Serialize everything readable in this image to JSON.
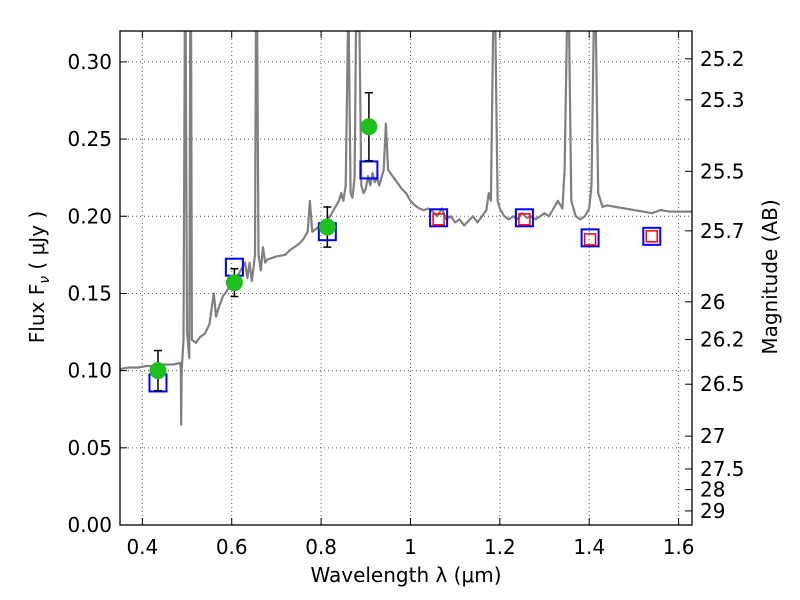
{
  "chart_data": {
    "type": "scatter",
    "xlabel": "Wavelength  λ (μm)",
    "ylabel": "Flux  F",
    "ylabel_sub": "ν",
    "ylabel_unit": " ( μJy )",
    "ylabel_right": "Magnitude (AB)",
    "xlim": [
      0.35,
      1.63
    ],
    "ylim": [
      0.0,
      0.32
    ],
    "grid": true,
    "x_ticks": [
      {
        "value": 0.4,
        "label": "0.4"
      },
      {
        "value": 0.6,
        "label": "0.6"
      },
      {
        "value": 0.8,
        "label": "0.8"
      },
      {
        "value": 1.0,
        "label": "1"
      },
      {
        "value": 1.2,
        "label": "1.2"
      },
      {
        "value": 1.4,
        "label": "1.4"
      },
      {
        "value": 1.6,
        "label": "1.6"
      }
    ],
    "y_ticks": [
      {
        "value": 0.0,
        "label": "0.00"
      },
      {
        "value": 0.05,
        "label": "0.05"
      },
      {
        "value": 0.1,
        "label": "0.10"
      },
      {
        "value": 0.15,
        "label": "0.15"
      },
      {
        "value": 0.2,
        "label": "0.20"
      },
      {
        "value": 0.25,
        "label": "0.25"
      },
      {
        "value": 0.3,
        "label": "0.30"
      }
    ],
    "mag_ticks": [
      {
        "mag": 25.2,
        "label": "25.2"
      },
      {
        "mag": 25.3,
        "label": "25.3"
      },
      {
        "mag": 25.5,
        "label": "25.5"
      },
      {
        "mag": 25.7,
        "label": "25.7"
      },
      {
        "mag": 26.0,
        "label": "26"
      },
      {
        "mag": 26.2,
        "label": "26.2"
      },
      {
        "mag": 26.5,
        "label": "26.5"
      },
      {
        "mag": 27.0,
        "label": "27"
      },
      {
        "mag": 27.5,
        "label": "27.5"
      },
      {
        "mag": 28.0,
        "label": "28"
      },
      {
        "mag": 29.0,
        "label": "29"
      }
    ],
    "colors": {
      "spectrum": "#808080",
      "observed": "#1fbf1f",
      "model_blue": "#0000ff",
      "model_red": "#ff0000",
      "errorbar": "#000000",
      "grid": "#555555"
    },
    "spectrum": [
      [
        0.35,
        0.101
      ],
      [
        0.37,
        0.102
      ],
      [
        0.39,
        0.102
      ],
      [
        0.41,
        0.103
      ],
      [
        0.43,
        0.103
      ],
      [
        0.45,
        0.104
      ],
      [
        0.47,
        0.104
      ],
      [
        0.485,
        0.105
      ],
      [
        0.486,
        0.1
      ],
      [
        0.487,
        0.065
      ],
      [
        0.488,
        0.1
      ],
      [
        0.492,
        0.12
      ],
      [
        0.495,
        0.32
      ],
      [
        0.497,
        0.32
      ],
      [
        0.5,
        0.125
      ],
      [
        0.505,
        0.108
      ],
      [
        0.507,
        0.32
      ],
      [
        0.509,
        0.32
      ],
      [
        0.511,
        0.12
      ],
      [
        0.52,
        0.118
      ],
      [
        0.53,
        0.122
      ],
      [
        0.54,
        0.124
      ],
      [
        0.55,
        0.13
      ],
      [
        0.56,
        0.15
      ],
      [
        0.565,
        0.135
      ],
      [
        0.57,
        0.14
      ],
      [
        0.58,
        0.148
      ],
      [
        0.59,
        0.152
      ],
      [
        0.6,
        0.158
      ],
      [
        0.61,
        0.16
      ],
      [
        0.62,
        0.165
      ],
      [
        0.63,
        0.17
      ],
      [
        0.635,
        0.16
      ],
      [
        0.64,
        0.17
      ],
      [
        0.645,
        0.158
      ],
      [
        0.648,
        0.165
      ],
      [
        0.652,
        0.175
      ],
      [
        0.654,
        0.32
      ],
      [
        0.657,
        0.32
      ],
      [
        0.66,
        0.175
      ],
      [
        0.665,
        0.165
      ],
      [
        0.67,
        0.18
      ],
      [
        0.675,
        0.17
      ],
      [
        0.68,
        0.172
      ],
      [
        0.7,
        0.174
      ],
      [
        0.72,
        0.175
      ],
      [
        0.73,
        0.178
      ],
      [
        0.74,
        0.18
      ],
      [
        0.75,
        0.182
      ],
      [
        0.76,
        0.185
      ],
      [
        0.77,
        0.19
      ],
      [
        0.775,
        0.21
      ],
      [
        0.78,
        0.19
      ],
      [
        0.79,
        0.192
      ],
      [
        0.8,
        0.195
      ],
      [
        0.81,
        0.197
      ],
      [
        0.82,
        0.2
      ],
      [
        0.83,
        0.205
      ],
      [
        0.84,
        0.21
      ],
      [
        0.845,
        0.215
      ],
      [
        0.85,
        0.21
      ],
      [
        0.855,
        0.22
      ],
      [
        0.86,
        0.32
      ],
      [
        0.862,
        0.32
      ],
      [
        0.866,
        0.215
      ],
      [
        0.87,
        0.212
      ],
      [
        0.875,
        0.225
      ],
      [
        0.878,
        0.32
      ],
      [
        0.886,
        0.32
      ],
      [
        0.89,
        0.22
      ],
      [
        0.895,
        0.215
      ],
      [
        0.9,
        0.218
      ],
      [
        0.905,
        0.226
      ],
      [
        0.91,
        0.22
      ],
      [
        0.915,
        0.228
      ],
      [
        0.92,
        0.222
      ],
      [
        0.925,
        0.225
      ],
      [
        0.93,
        0.22
      ],
      [
        0.94,
        0.23
      ],
      [
        0.945,
        0.26
      ],
      [
        0.95,
        0.23
      ],
      [
        0.96,
        0.226
      ],
      [
        0.97,
        0.222
      ],
      [
        0.98,
        0.218
      ],
      [
        0.99,
        0.215
      ],
      [
        1.0,
        0.21
      ],
      [
        1.01,
        0.207
      ],
      [
        1.02,
        0.205
      ],
      [
        1.03,
        0.204
      ],
      [
        1.04,
        0.205
      ],
      [
        1.05,
        0.203
      ],
      [
        1.06,
        0.2
      ],
      [
        1.07,
        0.205
      ],
      [
        1.08,
        0.198
      ],
      [
        1.09,
        0.2
      ],
      [
        1.1,
        0.196
      ],
      [
        1.11,
        0.198
      ],
      [
        1.12,
        0.194
      ],
      [
        1.13,
        0.197
      ],
      [
        1.14,
        0.2
      ],
      [
        1.15,
        0.196
      ],
      [
        1.16,
        0.2
      ],
      [
        1.17,
        0.204
      ],
      [
        1.175,
        0.215
      ],
      [
        1.18,
        0.21
      ],
      [
        1.185,
        0.32
      ],
      [
        1.19,
        0.32
      ],
      [
        1.195,
        0.21
      ],
      [
        1.2,
        0.205
      ],
      [
        1.21,
        0.2
      ],
      [
        1.22,
        0.198
      ],
      [
        1.23,
        0.2
      ],
      [
        1.24,
        0.198
      ],
      [
        1.25,
        0.202
      ],
      [
        1.26,
        0.199
      ],
      [
        1.27,
        0.2
      ],
      [
        1.28,
        0.198
      ],
      [
        1.29,
        0.2
      ],
      [
        1.3,
        0.202
      ],
      [
        1.31,
        0.2
      ],
      [
        1.32,
        0.205
      ],
      [
        1.33,
        0.21
      ],
      [
        1.34,
        0.205
      ],
      [
        1.345,
        0.23
      ],
      [
        1.35,
        0.32
      ],
      [
        1.355,
        0.32
      ],
      [
        1.36,
        0.21
      ],
      [
        1.37,
        0.2
      ],
      [
        1.38,
        0.198
      ],
      [
        1.39,
        0.2
      ],
      [
        1.4,
        0.205
      ],
      [
        1.405,
        0.22
      ],
      [
        1.41,
        0.32
      ],
      [
        1.415,
        0.32
      ],
      [
        1.42,
        0.215
      ],
      [
        1.43,
        0.206
      ],
      [
        1.44,
        0.207
      ],
      [
        1.46,
        0.206
      ],
      [
        1.48,
        0.205
      ],
      [
        1.5,
        0.204
      ],
      [
        1.52,
        0.203
      ],
      [
        1.54,
        0.202
      ],
      [
        1.56,
        0.204
      ],
      [
        1.58,
        0.203
      ],
      [
        1.6,
        0.203
      ],
      [
        1.63,
        0.203
      ]
    ],
    "observed": [
      {
        "x": 0.435,
        "y": 0.1,
        "yerr": 0.013
      },
      {
        "x": 0.606,
        "y": 0.157,
        "yerr": 0.009
      },
      {
        "x": 0.814,
        "y": 0.193,
        "yerr": 0.013
      },
      {
        "x": 0.907,
        "y": 0.258,
        "yerr": 0.022
      }
    ],
    "model_blue": [
      {
        "x": 0.435,
        "y": 0.092
      },
      {
        "x": 0.606,
        "y": 0.167
      },
      {
        "x": 0.814,
        "y": 0.19
      },
      {
        "x": 0.907,
        "y": 0.23
      },
      {
        "x": 1.063,
        "y": 0.199
      },
      {
        "x": 1.255,
        "y": 0.199
      },
      {
        "x": 1.402,
        "y": 0.186
      },
      {
        "x": 1.54,
        "y": 0.187
      }
    ],
    "model_red": [
      {
        "x": 1.063,
        "y": 0.198
      },
      {
        "x": 1.255,
        "y": 0.198
      },
      {
        "x": 1.402,
        "y": 0.185
      },
      {
        "x": 1.54,
        "y": 0.187
      }
    ]
  }
}
